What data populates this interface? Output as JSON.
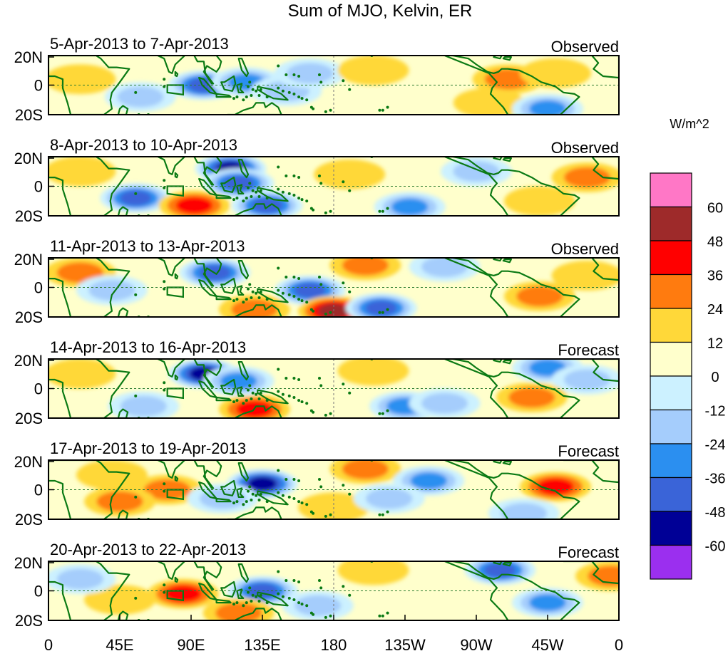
{
  "chart_data": {
    "type": "heatmap",
    "title": "Sum of MJO, Kelvin, ER",
    "units": "W/m^2",
    "x_ticks": [
      "0",
      "45E",
      "90E",
      "135E",
      "180",
      "135W",
      "90W",
      "45W",
      "0"
    ],
    "x_range_deg": [
      0,
      360
    ],
    "y_ticks": [
      "20N",
      "0",
      "20S"
    ],
    "y_range_deg": [
      -20,
      20
    ],
    "colorbar": {
      "labels": [
        "60",
        "48",
        "36",
        "24",
        "12",
        "0",
        "-12",
        "-24",
        "-36",
        "-48",
        "-60"
      ],
      "colors": [
        "#ff77c6",
        "#9e2a2a",
        "#ff0000",
        "#ff7b0f",
        "#ffd839",
        "#ffffcc",
        "#ccf1ff",
        "#a5cdfc",
        "#2b8ff0",
        "#3a64d8",
        "#000096",
        "#9b2fef"
      ]
    },
    "panels": [
      {
        "period": "5-Apr-2013 to 7-Apr-2013",
        "kind": "Observed",
        "anomalies": [
          {
            "lon": 98,
            "lat": 0,
            "value": -40
          },
          {
            "lon": 125,
            "lat": 2,
            "value": -32
          },
          {
            "lon": 58,
            "lat": -8,
            "value": -20
          },
          {
            "lon": 150,
            "lat": -4,
            "value": -20
          },
          {
            "lon": 165,
            "lat": 8,
            "value": -18
          },
          {
            "lon": 205,
            "lat": 10,
            "value": 14
          },
          {
            "lon": 290,
            "lat": 4,
            "value": 34
          },
          {
            "lon": 278,
            "lat": -12,
            "value": 14
          },
          {
            "lon": 20,
            "lat": 4,
            "value": 14
          },
          {
            "lon": 320,
            "lat": 8,
            "value": 12
          },
          {
            "lon": 315,
            "lat": -16,
            "value": -24
          }
        ]
      },
      {
        "period": "8-Apr-2013 to 10-Apr-2013",
        "kind": "Observed",
        "anomalies": [
          {
            "lon": 115,
            "lat": 12,
            "value": -52
          },
          {
            "lon": 120,
            "lat": 2,
            "value": -38
          },
          {
            "lon": 55,
            "lat": -8,
            "value": -42
          },
          {
            "lon": 92,
            "lat": -13,
            "value": 46
          },
          {
            "lon": 138,
            "lat": -13,
            "value": -36
          },
          {
            "lon": 190,
            "lat": 8,
            "value": 14
          },
          {
            "lon": 228,
            "lat": -14,
            "value": -34
          },
          {
            "lon": 340,
            "lat": 6,
            "value": 24
          },
          {
            "lon": 310,
            "lat": -10,
            "value": 14
          },
          {
            "lon": 20,
            "lat": 10,
            "value": 12
          },
          {
            "lon": 270,
            "lat": 10,
            "value": -14
          }
        ]
      },
      {
        "period": "11-Apr-2013 to 13-Apr-2013",
        "kind": "Observed",
        "anomalies": [
          {
            "lon": 20,
            "lat": 10,
            "value": 26
          },
          {
            "lon": 105,
            "lat": 10,
            "value": -44
          },
          {
            "lon": 165,
            "lat": -2,
            "value": -38
          },
          {
            "lon": 180,
            "lat": -16,
            "value": 52
          },
          {
            "lon": 200,
            "lat": 15,
            "value": 26
          },
          {
            "lon": 210,
            "lat": -14,
            "value": -40
          },
          {
            "lon": 130,
            "lat": -15,
            "value": 24
          },
          {
            "lon": 310,
            "lat": -6,
            "value": 28
          },
          {
            "lon": 340,
            "lat": 8,
            "value": 22
          },
          {
            "lon": 40,
            "lat": -2,
            "value": -20
          },
          {
            "lon": 250,
            "lat": 14,
            "value": -18
          }
        ]
      },
      {
        "period": "14-Apr-2013 to 16-Apr-2013",
        "kind": "Forecast",
        "anomalies": [
          {
            "lon": 98,
            "lat": 10,
            "value": -56
          },
          {
            "lon": 130,
            "lat": -14,
            "value": 38
          },
          {
            "lon": 120,
            "lat": 5,
            "value": -26
          },
          {
            "lon": 205,
            "lat": 12,
            "value": 14
          },
          {
            "lon": 225,
            "lat": -12,
            "value": -30
          },
          {
            "lon": 315,
            "lat": 14,
            "value": -34
          },
          {
            "lon": 340,
            "lat": 6,
            "value": -18
          },
          {
            "lon": 305,
            "lat": -6,
            "value": 26
          },
          {
            "lon": 20,
            "lat": 10,
            "value": 14
          },
          {
            "lon": 60,
            "lat": -12,
            "value": -16
          },
          {
            "lon": 250,
            "lat": -10,
            "value": -14
          }
        ]
      },
      {
        "period": "17-Apr-2013 to 19-Apr-2013",
        "kind": "Forecast",
        "anomalies": [
          {
            "lon": 135,
            "lat": 4,
            "value": -56
          },
          {
            "lon": 75,
            "lat": 0,
            "value": 30
          },
          {
            "lon": 45,
            "lat": -8,
            "value": 26
          },
          {
            "lon": 200,
            "lat": 14,
            "value": 34
          },
          {
            "lon": 40,
            "lat": 10,
            "value": 16
          },
          {
            "lon": 240,
            "lat": 6,
            "value": -28
          },
          {
            "lon": 320,
            "lat": 2,
            "value": 40
          },
          {
            "lon": 110,
            "lat": -6,
            "value": -18
          },
          {
            "lon": 180,
            "lat": -12,
            "value": 18
          },
          {
            "lon": 300,
            "lat": -16,
            "value": -16
          },
          {
            "lon": 215,
            "lat": -6,
            "value": -14
          }
        ]
      },
      {
        "period": "20-Apr-2013 to 22-Apr-2013",
        "kind": "Forecast",
        "anomalies": [
          {
            "lon": 85,
            "lat": -2,
            "value": 42
          },
          {
            "lon": 135,
            "lat": 0,
            "value": -38
          },
          {
            "lon": 120,
            "lat": -15,
            "value": 30
          },
          {
            "lon": 205,
            "lat": 14,
            "value": 18
          },
          {
            "lon": 285,
            "lat": 14,
            "value": -36
          },
          {
            "lon": 315,
            "lat": -8,
            "value": -30
          },
          {
            "lon": 355,
            "lat": 10,
            "value": 32
          },
          {
            "lon": 45,
            "lat": -6,
            "value": 14
          },
          {
            "lon": 170,
            "lat": -10,
            "value": -18
          },
          {
            "lon": 20,
            "lat": 8,
            "value": -12
          }
        ]
      }
    ]
  }
}
